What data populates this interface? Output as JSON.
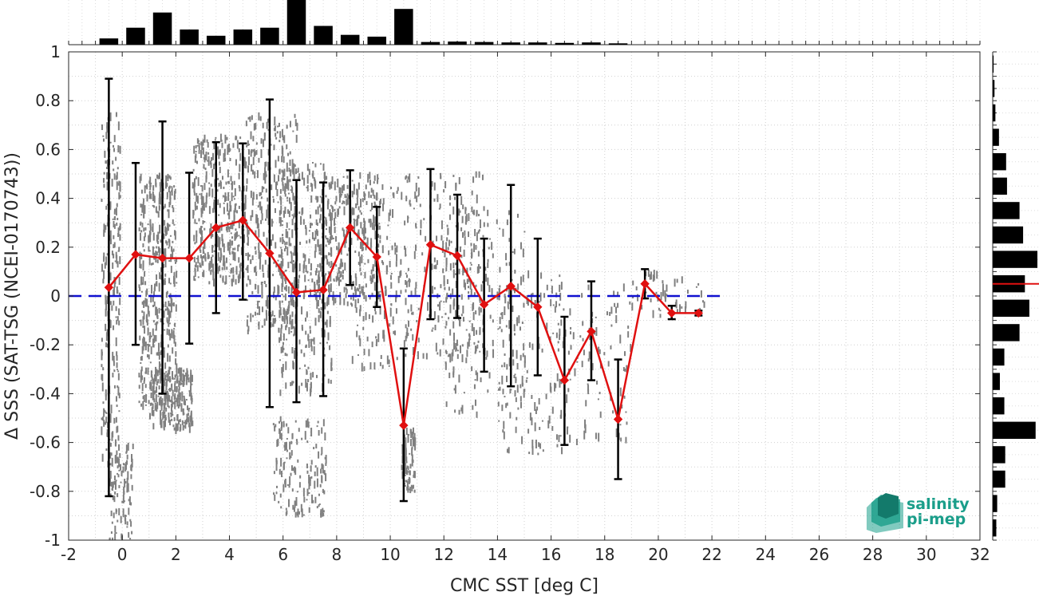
{
  "chart_data": {
    "type": "scatter",
    "xlabel": "CMC SST [deg C]",
    "ylabel": "Δ SSS (SAT-TSG (NCEI-0170743))",
    "xlim": [
      -2,
      32
    ],
    "ylim": [
      -1,
      1
    ],
    "xticks": [
      -2,
      0,
      2,
      4,
      6,
      8,
      10,
      12,
      14,
      16,
      18,
      20,
      22,
      24,
      26,
      28,
      30,
      32
    ],
    "yticks": [
      -1,
      -0.8,
      -0.6,
      -0.4,
      -0.2,
      0,
      0.2,
      0.4,
      0.6,
      0.8,
      1
    ],
    "xtick_labels": [
      "-2",
      "0",
      "2",
      "4",
      "6",
      "8",
      "10",
      "12",
      "14",
      "16",
      "18",
      "20",
      "22",
      "24",
      "26",
      "28",
      "30",
      "32"
    ],
    "ytick_labels": [
      "-1",
      "-0.8",
      "-0.6",
      "-0.4",
      "-0.2",
      "0",
      "0.2",
      "0.4",
      "0.6",
      "0.8",
      "1"
    ],
    "grid": true,
    "zero_line": {
      "y": 0,
      "color": "#1010d0",
      "style": "dashed"
    },
    "binned_mean": {
      "color": "#e01010",
      "x": [
        -0.5,
        0.5,
        1.5,
        2.5,
        3.5,
        4.5,
        5.5,
        6.5,
        7.5,
        8.5,
        9.5,
        10.5,
        11.5,
        12.5,
        13.5,
        14.5,
        15.5,
        16.5,
        17.5,
        18.5,
        19.5,
        20.5,
        21.5
      ],
      "y": [
        0.035,
        0.17,
        0.155,
        0.155,
        0.28,
        0.31,
        0.175,
        0.015,
        0.025,
        0.28,
        0.16,
        -0.53,
        0.21,
        0.165,
        -0.035,
        0.04,
        -0.045,
        -0.345,
        -0.145,
        -0.505,
        0.05,
        -0.07,
        -0.07
      ],
      "err_low": [
        -0.82,
        -0.2,
        -0.4,
        -0.195,
        -0.07,
        -0.015,
        -0.455,
        -0.435,
        -0.41,
        0.045,
        -0.045,
        -0.84,
        -0.095,
        -0.09,
        -0.31,
        -0.37,
        -0.325,
        -0.61,
        -0.345,
        -0.75,
        -0.01,
        -0.095,
        -0.08
      ],
      "err_high": [
        0.89,
        0.545,
        0.715,
        0.505,
        0.63,
        0.625,
        0.805,
        0.475,
        0.465,
        0.515,
        0.365,
        -0.215,
        0.52,
        0.415,
        0.235,
        0.455,
        0.235,
        -0.085,
        0.06,
        -0.26,
        0.11,
        -0.04,
        -0.06
      ]
    },
    "scatter_color": "#808080",
    "scatter_clusters": [
      {
        "x": [
          -0.8,
          -0.1
        ],
        "y": [
          -0.7,
          0.75
        ],
        "n": 220
      },
      {
        "x": [
          -0.5,
          0.4
        ],
        "y": [
          -1.0,
          -0.6
        ],
        "n": 90
      },
      {
        "x": [
          0.6,
          2.0
        ],
        "y": [
          -0.45,
          0.5
        ],
        "n": 420
      },
      {
        "x": [
          1.0,
          2.6
        ],
        "y": [
          -0.55,
          -0.3
        ],
        "n": 220
      },
      {
        "x": [
          2.6,
          4.6
        ],
        "y": [
          0.05,
          0.65
        ],
        "n": 360
      },
      {
        "x": [
          4.6,
          6.5
        ],
        "y": [
          -0.15,
          0.75
        ],
        "n": 340
      },
      {
        "x": [
          5.8,
          7.8
        ],
        "y": [
          -0.4,
          0.55
        ],
        "n": 320
      },
      {
        "x": [
          5.6,
          7.6
        ],
        "y": [
          -0.9,
          -0.5
        ],
        "n": 150
      },
      {
        "x": [
          7.2,
          9.6
        ],
        "y": [
          -0.05,
          0.5
        ],
        "n": 260
      },
      {
        "x": [
          8.5,
          10.6
        ],
        "y": [
          -0.3,
          0.45
        ],
        "n": 160
      },
      {
        "x": [
          10.4,
          10.9
        ],
        "y": [
          -0.8,
          -0.55
        ],
        "n": 80
      },
      {
        "x": [
          10.5,
          13.5
        ],
        "y": [
          -0.25,
          0.5
        ],
        "n": 230
      },
      {
        "x": [
          12.0,
          15.0
        ],
        "y": [
          -0.5,
          0.35
        ],
        "n": 180
      },
      {
        "x": [
          14.0,
          16.5
        ],
        "y": [
          -0.65,
          0.1
        ],
        "n": 120
      },
      {
        "x": [
          16.0,
          19.0
        ],
        "y": [
          -0.6,
          0.05
        ],
        "n": 110
      },
      {
        "x": [
          19.0,
          21.7
        ],
        "y": [
          -0.1,
          0.1
        ],
        "n": 50
      }
    ],
    "top_histogram": {
      "bin_centers": [
        -0.5,
        0.5,
        1.5,
        2.5,
        3.5,
        4.5,
        5.5,
        6.5,
        7.5,
        8.5,
        9.5,
        10.5,
        11.5,
        12.5,
        13.5,
        14.5,
        15.5,
        16.5,
        17.5,
        18.5
      ],
      "counts": [
        0.14,
        0.38,
        0.72,
        0.34,
        0.2,
        0.34,
        0.38,
        1.0,
        0.42,
        0.22,
        0.18,
        0.8,
        0.06,
        0.07,
        0.06,
        0.05,
        0.05,
        0.04,
        0.05,
        0.03
      ]
    },
    "right_histogram": {
      "bin_centers": [
        -0.95,
        -0.85,
        -0.75,
        -0.65,
        -0.55,
        -0.45,
        -0.35,
        -0.25,
        -0.15,
        -0.05,
        0.05,
        0.15,
        0.25,
        0.35,
        0.45,
        0.55,
        0.65,
        0.75,
        0.85,
        0.95
      ],
      "counts": [
        0.08,
        0.1,
        0.28,
        0.28,
        0.96,
        0.26,
        0.16,
        0.26,
        0.6,
        0.82,
        0.72,
        1.0,
        0.68,
        0.6,
        0.32,
        0.3,
        0.14,
        0.06,
        0.04,
        0.02
      ],
      "median": 0.05,
      "median_color": "#e01010"
    }
  },
  "logo": {
    "line1": "salinity",
    "line2": "pi-mep",
    "color": "#1a9e8a"
  }
}
